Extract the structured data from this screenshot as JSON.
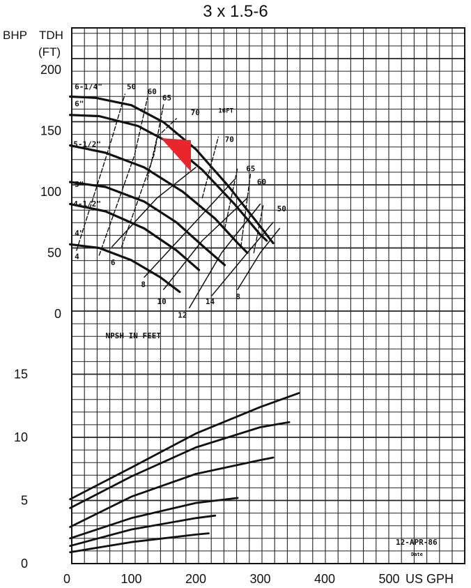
{
  "chart_data": {
    "type": "line",
    "title": "3 x 1.5-6",
    "left_axis_labels": [
      "BHP",
      "TDH",
      "(FT)"
    ],
    "xlabel": "US GPH",
    "x_ticks": [
      "0",
      "100",
      "200",
      "300",
      "400",
      "500"
    ],
    "xlim": [
      0,
      600
    ],
    "head_ticks": [
      "200",
      "150",
      "100",
      "50",
      "0"
    ],
    "head_ylim": [
      0,
      200
    ],
    "bhp_ticks": [
      "15",
      "10",
      "5",
      "0"
    ],
    "bhp_ylim": [
      0,
      20
    ],
    "head_curves": [
      {
        "name": "6-1/4\"",
        "points": [
          [
            5,
            178
          ],
          [
            45,
            177
          ],
          [
            100,
            171
          ],
          [
            150,
            157
          ],
          [
            200,
            135
          ],
          [
            250,
            105
          ],
          [
            295,
            75
          ],
          [
            320,
            58
          ]
        ]
      },
      {
        "name": "6\"",
        "points": [
          [
            5,
            163
          ],
          [
            50,
            162
          ],
          [
            110,
            154
          ],
          [
            160,
            140
          ],
          [
            210,
            118
          ],
          [
            260,
            90
          ],
          [
            300,
            65
          ],
          [
            310,
            60
          ]
        ]
      },
      {
        "name": "5-1/2\"",
        "points": [
          [
            5,
            138
          ],
          [
            60,
            132
          ],
          [
            120,
            120
          ],
          [
            180,
            100
          ],
          [
            230,
            78
          ],
          [
            265,
            58
          ],
          [
            280,
            50
          ]
        ]
      },
      {
        "name": "5\"",
        "points": [
          [
            5,
            108
          ],
          [
            60,
            104
          ],
          [
            120,
            92
          ],
          [
            170,
            75
          ],
          [
            210,
            56
          ],
          [
            245,
            40
          ]
        ]
      },
      {
        "name": "4-1/2\"",
        "points": [
          [
            5,
            90
          ],
          [
            60,
            84
          ],
          [
            120,
            70
          ],
          [
            170,
            52
          ],
          [
            205,
            36
          ]
        ]
      },
      {
        "name": "4\"",
        "points": [
          [
            5,
            57
          ],
          [
            50,
            54
          ],
          [
            100,
            44
          ],
          [
            145,
            30
          ],
          [
            175,
            18
          ]
        ]
      }
    ],
    "head_curve_labels": [
      {
        "text": "6-1/4\"",
        "x": 12,
        "y": 184
      },
      {
        "text": "6\"",
        "x": 12,
        "y": 170
      },
      {
        "text": "5-1/2\"",
        "x": 10,
        "y": 137
      },
      {
        "text": "5\"",
        "x": 12,
        "y": 104
      },
      {
        "text": "4-1/2\"",
        "x": 10,
        "y": 88
      },
      {
        "text": "4\"",
        "x": 12,
        "y": 64
      },
      {
        "text": "4",
        "x": 12,
        "y": 45
      }
    ],
    "efficiency_lines": [
      {
        "name": "50",
        "points": [
          [
            15,
            52
          ],
          [
            70,
            144
          ],
          [
            90,
            180
          ]
        ]
      },
      {
        "name": "60",
        "points": [
          [
            50,
            48
          ],
          [
            105,
            130
          ],
          [
            125,
            177
          ]
        ]
      },
      {
        "name": "65",
        "points": [
          [
            85,
            55
          ],
          [
            135,
            130
          ],
          [
            150,
            172
          ]
        ]
      },
      {
        "name": "70",
        "points": [
          [
            125,
            110
          ],
          [
            140,
            145
          ],
          [
            170,
            160
          ]
        ]
      },
      {
        "name": "70",
        "points": [
          [
            210,
            95
          ],
          [
            235,
            145
          ]
        ]
      },
      {
        "name": "65",
        "points": [
          [
            245,
            70
          ],
          [
            265,
            120
          ]
        ]
      },
      {
        "name": "60",
        "points": [
          [
            270,
            55
          ],
          [
            285,
            115
          ]
        ]
      },
      {
        "name": "50",
        "points": [
          [
            290,
            50
          ],
          [
            305,
            90
          ]
        ]
      }
    ],
    "efficiency_labels": [
      {
        "text": "50",
        "x": 93,
        "y": 184
      },
      {
        "text": "60",
        "x": 125,
        "y": 180
      },
      {
        "text": "65",
        "x": 148,
        "y": 175
      },
      {
        "text": "70",
        "x": 192,
        "y": 163
      },
      {
        "text": "70",
        "x": 245,
        "y": 141
      },
      {
        "text": "65",
        "x": 278,
        "y": 117
      },
      {
        "text": "60",
        "x": 295,
        "y": 106
      },
      {
        "text": "50",
        "x": 326,
        "y": 84
      }
    ],
    "annotation_text": "16FT",
    "annotation": {
      "x": 235,
      "y": 165
    },
    "npsh_lines": [
      {
        "name": "6",
        "points": [
          [
            70,
            55
          ],
          [
            140,
            95
          ],
          [
            200,
            120
          ]
        ]
      },
      {
        "name": "8",
        "points": [
          [
            120,
            30
          ],
          [
            190,
            70
          ],
          [
            260,
            110
          ]
        ]
      },
      {
        "name": "10",
        "points": [
          [
            150,
            20
          ],
          [
            210,
            60
          ],
          [
            280,
            95
          ]
        ]
      },
      {
        "name": "12",
        "points": [
          [
            190,
            5
          ],
          [
            240,
            50
          ],
          [
            300,
            90
          ]
        ]
      },
      {
        "name": "14",
        "points": [
          [
            225,
            15
          ],
          [
            280,
            50
          ],
          [
            320,
            75
          ]
        ]
      },
      {
        "name": "8",
        "points": [
          [
            265,
            20
          ],
          [
            300,
            50
          ],
          [
            330,
            70
          ]
        ]
      }
    ],
    "npsh_labels": [
      {
        "text": "6",
        "x": 68,
        "y": 40
      },
      {
        "text": "8",
        "x": 115,
        "y": 22
      },
      {
        "text": "10",
        "x": 140,
        "y": 8
      },
      {
        "text": "12",
        "x": 172,
        "y": -3
      },
      {
        "text": "14",
        "x": 215,
        "y": 8
      },
      {
        "text": "8",
        "x": 262,
        "y": 12
      }
    ],
    "npsh_label": "NPSH IN FEET",
    "npsh_label_pos": {
      "x": 60,
      "y": -20
    },
    "bhp_curves": [
      {
        "points": [
          [
            5,
            5.1
          ],
          [
            100,
            7.6
          ],
          [
            200,
            10.3
          ],
          [
            300,
            12.4
          ],
          [
            360,
            13.5
          ]
        ]
      },
      {
        "points": [
          [
            5,
            4.4
          ],
          [
            100,
            6.9
          ],
          [
            200,
            9.2
          ],
          [
            300,
            10.8
          ],
          [
            345,
            11.2
          ]
        ]
      },
      {
        "points": [
          [
            5,
            2.9
          ],
          [
            100,
            5.3
          ],
          [
            200,
            7.1
          ],
          [
            300,
            8.2
          ],
          [
            320,
            8.4
          ]
        ]
      },
      {
        "points": [
          [
            5,
            2.0
          ],
          [
            100,
            3.6
          ],
          [
            200,
            4.8
          ],
          [
            265,
            5.2
          ]
        ]
      },
      {
        "points": [
          [
            5,
            1.4
          ],
          [
            100,
            2.7
          ],
          [
            200,
            3.6
          ],
          [
            230,
            3.8
          ]
        ]
      },
      {
        "points": [
          [
            5,
            0.9
          ],
          [
            100,
            1.7
          ],
          [
            200,
            2.3
          ],
          [
            220,
            2.4
          ]
        ]
      }
    ],
    "grid": true,
    "date_text": "12-APR-86",
    "date_sub": "Date",
    "marker": {
      "shape": "triangle",
      "color": "#e8262b"
    }
  }
}
